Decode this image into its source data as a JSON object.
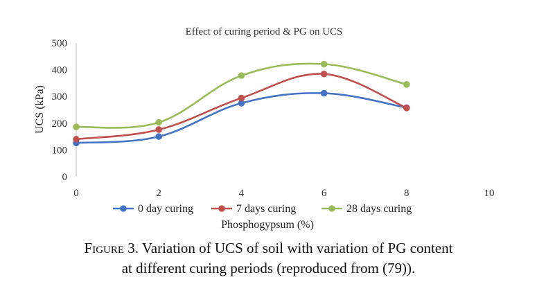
{
  "chart_data": {
    "type": "line",
    "title": "Effect of curing period & PG on UCS",
    "xlabel": "Phosphogypsum (%)",
    "ylabel": "UCS (kPa)",
    "xlim": [
      0,
      10
    ],
    "ylim": [
      0,
      500
    ],
    "xticks": [
      "0",
      "2",
      "4",
      "6",
      "8",
      "10"
    ],
    "yticks": [
      "0",
      "100",
      "200",
      "300",
      "400",
      "500"
    ],
    "grid": false,
    "legend_position": "bottom",
    "x": [
      0,
      2,
      4,
      6,
      8
    ],
    "series": [
      {
        "name": "0 day curing",
        "color": "#4472c4",
        "values": [
          126,
          150,
          275,
          312,
          258
        ]
      },
      {
        "name": "7 days curing",
        "color": "#c0504d",
        "values": [
          140,
          176,
          294,
          384,
          257
        ]
      },
      {
        "name": "28 days curing",
        "color": "#9bbb59",
        "values": [
          186,
          203,
          378,
          421,
          345
        ]
      }
    ]
  },
  "caption": {
    "figure_label": "Figure 3.",
    "text_line1": "Variation of UCS of soil with variation of PG content",
    "text_line2": "at different curing periods (reproduced from (79))."
  }
}
